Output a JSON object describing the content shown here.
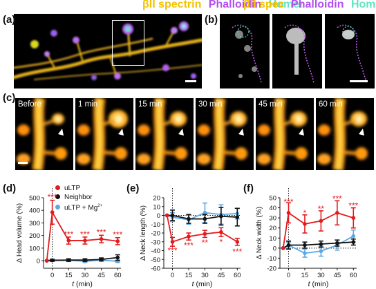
{
  "colors": {
    "spectrin": "#f2c200",
    "phalloidin": "#b44ff0",
    "homer": "#62e3c3",
    "uLTP": "#e41a1c",
    "neighbor": "#111111",
    "mg": "#5aa9e6"
  },
  "panel_a": {
    "label": "(a)",
    "title_parts": [
      {
        "text": "βII spectrin",
        "color_key": "spectrin"
      },
      {
        "text": "Phalloidin",
        "color_key": "phalloidin"
      },
      {
        "text": "Homer",
        "color_key": "homer"
      }
    ]
  },
  "panel_b": {
    "label": "(b)",
    "title_parts": [
      {
        "text": "βII spec",
        "color_key": "spectrin"
      },
      {
        "text": "Phalloidin",
        "color_key": "phalloidin"
      },
      {
        "text": "Homer",
        "color_key": "homer"
      }
    ]
  },
  "panel_c": {
    "label": "(c)",
    "timepoints": [
      "Before",
      "1 min",
      "15 min",
      "30 min",
      "45 min",
      "60 min"
    ]
  },
  "legend": {
    "ultp": "uLTP",
    "neighbor": "Neighbor",
    "mg": "uLTP + Mg",
    "mg_sup": "2+"
  },
  "chart_data": [
    {
      "panel": "(d)",
      "type": "line",
      "xlabel": "t (min)",
      "ylabel": "Δ Head volume (%)",
      "x": [
        0,
        15,
        30,
        45,
        60
      ],
      "xlim": [
        -8,
        63
      ],
      "ylim": [
        -60,
        500
      ],
      "yticks": [
        0,
        100,
        200,
        300,
        400,
        500
      ],
      "yticklabels": [
        "0",
        "100",
        "200",
        "300",
        "400",
        "500"
      ],
      "series": [
        {
          "name": "uLTP",
          "color_key": "uLTP",
          "x": [
            -5,
            0,
            15,
            30,
            45,
            60
          ],
          "values": [
            0,
            385,
            160,
            160,
            172,
            155
          ],
          "err": [
            0,
            95,
            28,
            28,
            30,
            28
          ]
        },
        {
          "name": "Neighbor",
          "color_key": "neighbor",
          "x": [
            -5,
            0,
            15,
            30,
            45,
            60
          ],
          "values": [
            0,
            3,
            5,
            5,
            10,
            25
          ],
          "err": [
            0,
            8,
            10,
            10,
            12,
            22
          ]
        },
        {
          "name": "uLTP + Mg2+",
          "color_key": "mg",
          "x": [
            -5,
            0,
            15,
            30,
            45,
            60
          ],
          "values": [
            0,
            5,
            3,
            -5,
            5,
            -5
          ],
          "err": [
            0,
            5,
            8,
            8,
            8,
            8
          ]
        }
      ],
      "annotations": [
        {
          "x": 0,
          "y": 505,
          "text": "***"
        },
        {
          "x": 15,
          "y": 210,
          "text": "***"
        },
        {
          "x": 30,
          "y": 210,
          "text": "***"
        },
        {
          "x": 45,
          "y": 225,
          "text": "***"
        },
        {
          "x": 60,
          "y": 205,
          "text": "***"
        }
      ]
    },
    {
      "panel": "(e)",
      "type": "line",
      "xlabel": "t (min)",
      "ylabel": "Δ Neck length (%)",
      "x": [
        0,
        15,
        30,
        45,
        60
      ],
      "xlim": [
        -8,
        63
      ],
      "ylim": [
        -60,
        20
      ],
      "yticks": [
        20,
        10,
        0,
        -10,
        -20,
        -30,
        -40,
        -50,
        -60
      ],
      "yticklabels": [
        "20",
        "10",
        "0",
        "-10",
        "-20",
        "-30",
        "-40",
        "-50",
        "-60"
      ],
      "series": [
        {
          "name": "uLTP",
          "color_key": "uLTP",
          "x": [
            -5,
            0,
            15,
            30,
            45,
            60
          ],
          "values": [
            0,
            -30,
            -24,
            -21,
            -19,
            -30
          ],
          "err": [
            0,
            5,
            4,
            4,
            5,
            4
          ]
        },
        {
          "name": "Neighbor",
          "color_key": "neighbor",
          "x": [
            -5,
            0,
            15,
            30,
            45,
            60
          ],
          "values": [
            0,
            0,
            -4,
            -4,
            -1,
            -2
          ],
          "err": [
            0,
            6,
            5,
            5,
            10,
            10
          ]
        },
        {
          "name": "uLTP + Mg2+",
          "color_key": "mg",
          "x": [
            -5,
            0,
            15,
            30,
            45,
            60
          ],
          "values": [
            0,
            -2,
            -5,
            3,
            1,
            2
          ],
          "err": [
            0,
            5,
            5,
            11,
            11,
            6
          ]
        }
      ],
      "annotations": [
        {
          "x": 0,
          "y": -40,
          "text": "***"
        },
        {
          "x": 15,
          "y": -34,
          "text": "***"
        },
        {
          "x": 30,
          "y": -31,
          "text": "**"
        },
        {
          "x": 45,
          "y": -30,
          "text": "*"
        },
        {
          "x": 60,
          "y": -41,
          "text": "***"
        }
      ]
    },
    {
      "panel": "(f)",
      "type": "line",
      "xlabel": "t (min)",
      "ylabel": "Δ Neck width (%)",
      "x": [
        0,
        15,
        30,
        45,
        60
      ],
      "xlim": [
        -8,
        63
      ],
      "ylim": [
        -20,
        50
      ],
      "yticks": [
        50,
        40,
        30,
        20,
        10,
        0,
        -10,
        -20
      ],
      "yticklabels": [
        "50",
        "40",
        "30",
        "20",
        "10",
        "0",
        "-10",
        "-20"
      ],
      "series": [
        {
          "name": "uLTP",
          "color_key": "uLTP",
          "x": [
            -5,
            0,
            15,
            30,
            45,
            60
          ],
          "values": [
            0,
            35,
            24,
            27,
            35,
            30
          ],
          "err": [
            0,
            10,
            9,
            10,
            12,
            10
          ]
        },
        {
          "name": "Neighbor",
          "color_key": "neighbor",
          "x": [
            -5,
            0,
            15,
            30,
            45,
            60
          ],
          "values": [
            0,
            3,
            3,
            4,
            5,
            6
          ],
          "err": [
            0,
            4,
            3,
            3,
            3,
            3
          ]
        },
        {
          "name": "uLTP + Mg2+",
          "color_key": "mg",
          "x": [
            -5,
            0,
            15,
            30,
            45,
            60
          ],
          "values": [
            0,
            3,
            -5,
            -3,
            3,
            12
          ],
          "err": [
            0,
            3,
            4,
            5,
            5,
            6
          ]
        }
      ],
      "annotations": [
        {
          "x": 0,
          "y": 46,
          "text": "***"
        },
        {
          "x": 15,
          "y": 35,
          "text": "*"
        },
        {
          "x": 30,
          "y": 39,
          "text": "**"
        },
        {
          "x": 45,
          "y": 49,
          "text": "***"
        },
        {
          "x": 60,
          "y": 42,
          "text": "***"
        }
      ]
    }
  ]
}
